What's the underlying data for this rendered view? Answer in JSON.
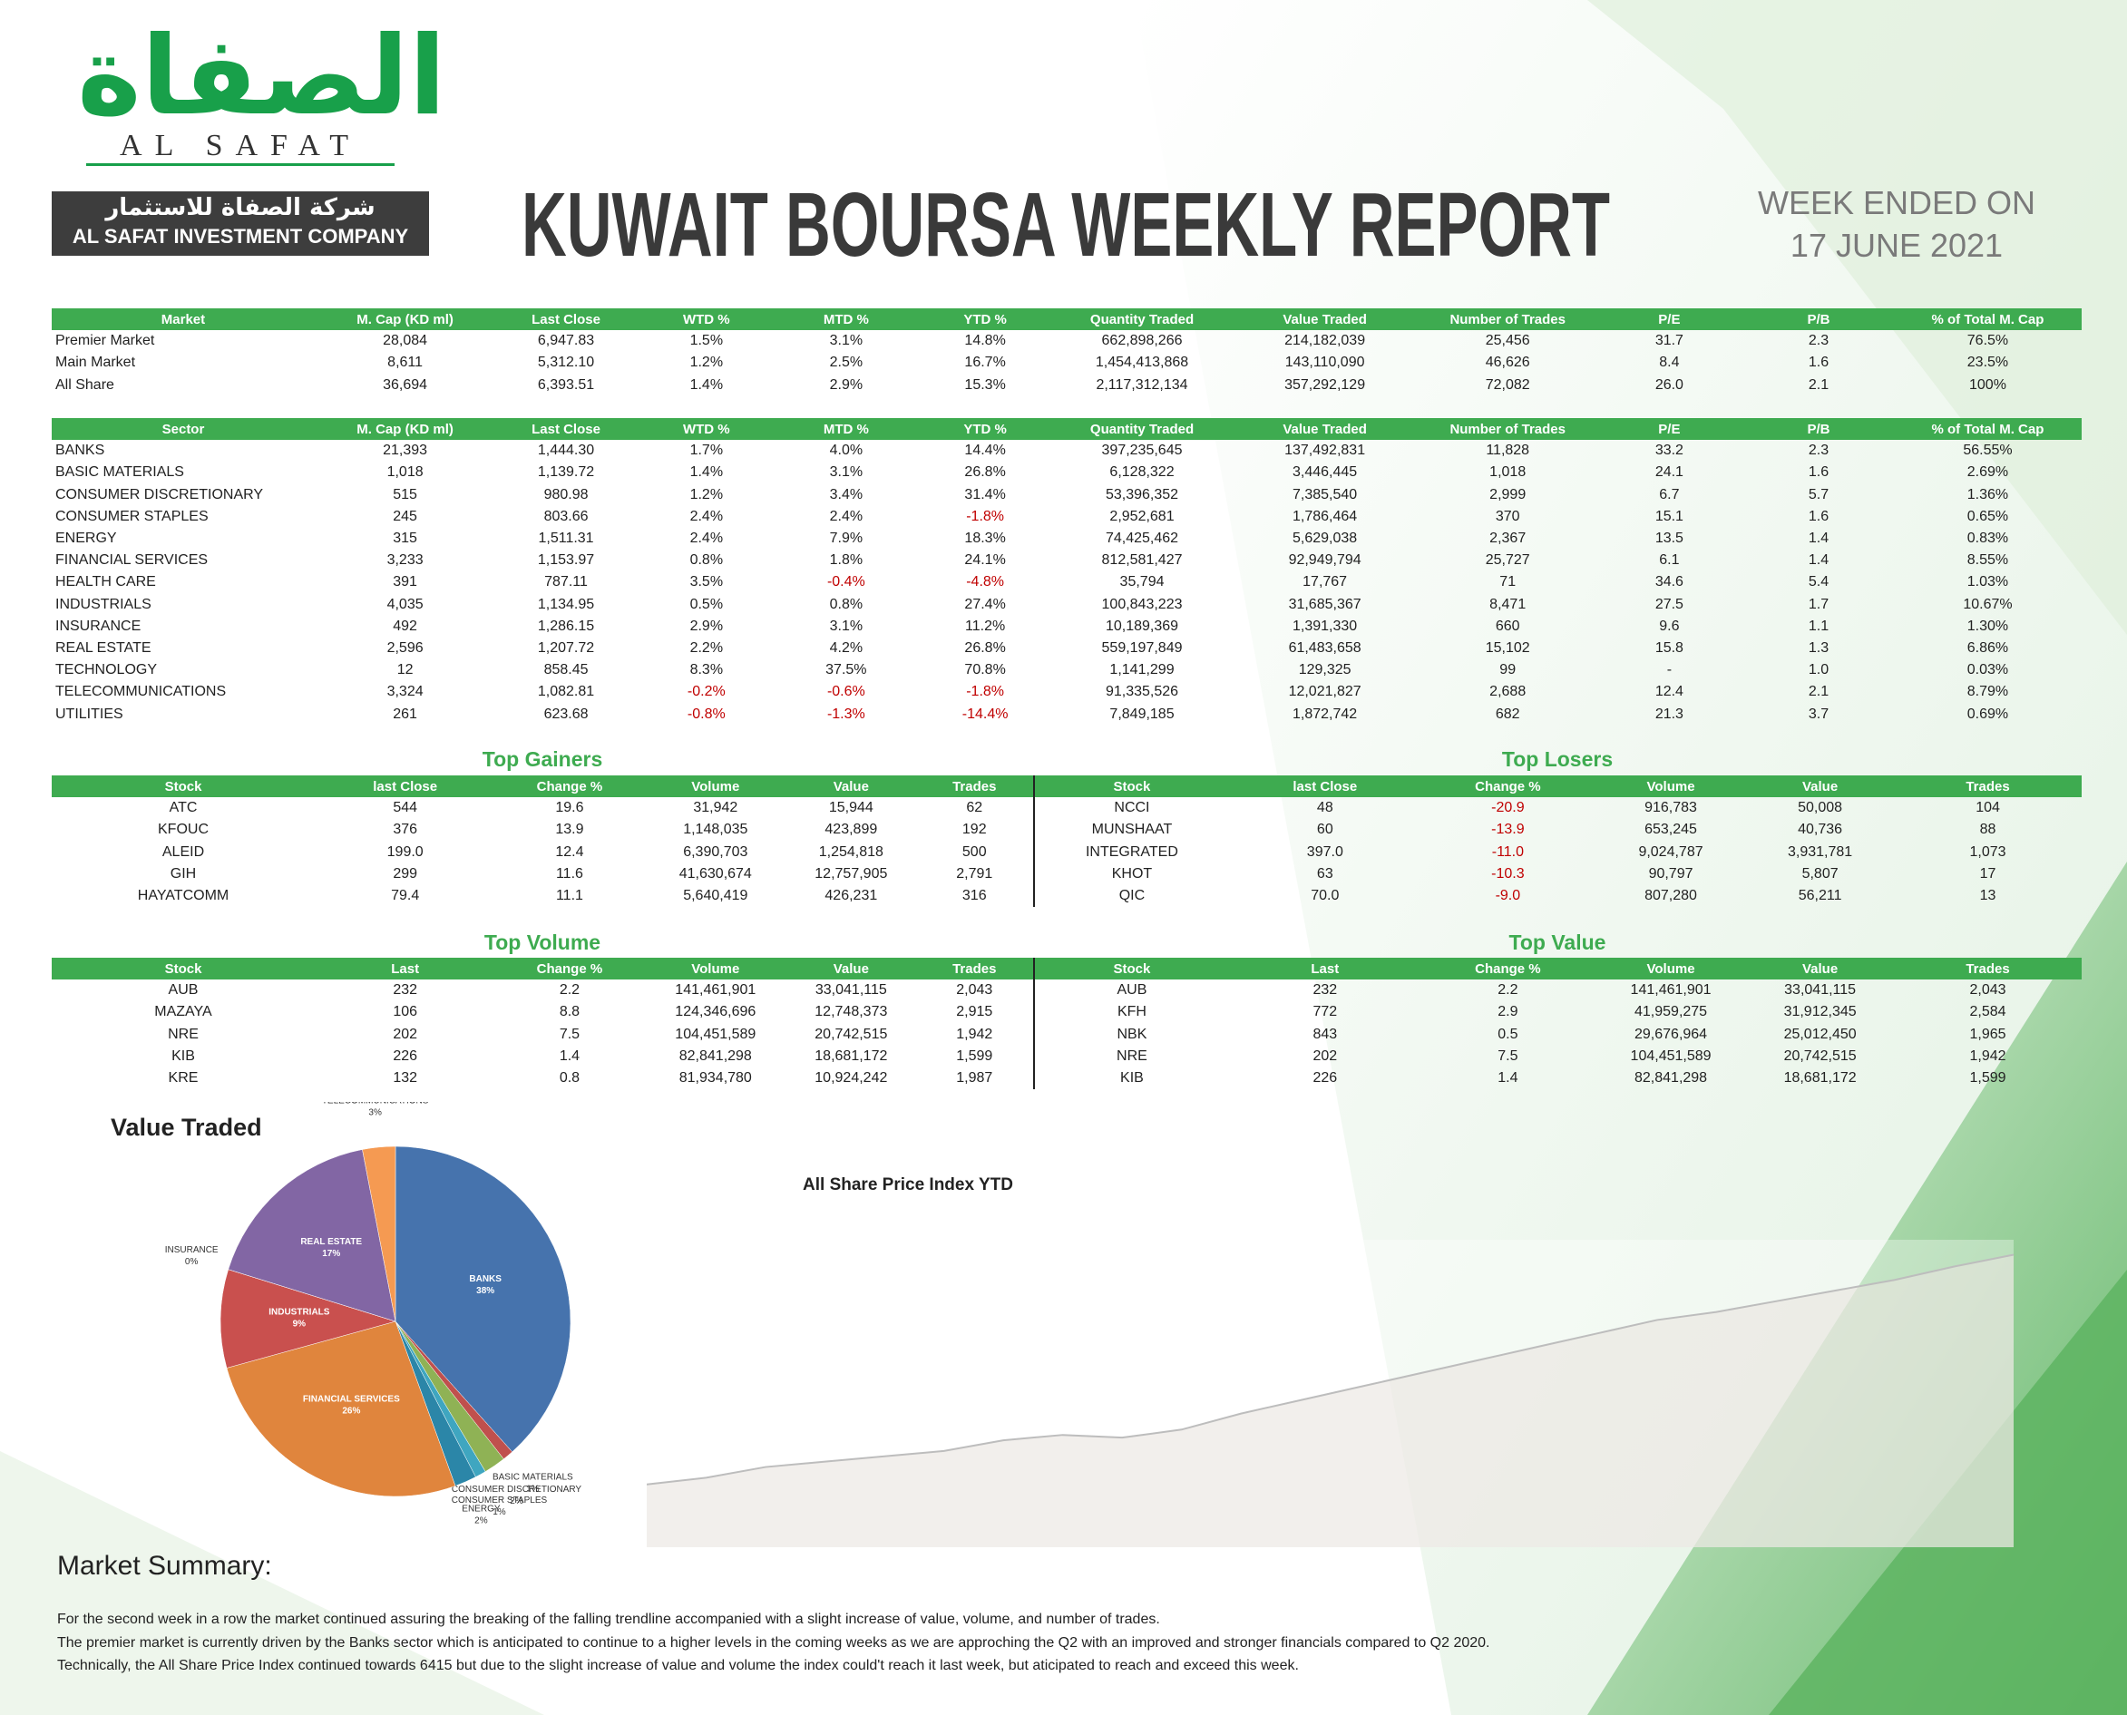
{
  "header": {
    "logo_arabic": "الصفاة",
    "logo_english": "AL SAFAT",
    "company_arabic": "شركة الصفاة للاستثمار",
    "company_english": "AL SAFAT INVESTMENT COMPANY",
    "title": "KUWAIT BOURSA WEEKLY REPORT",
    "week_label": "WEEK ENDED ON",
    "week_date": "17 JUNE 2021"
  },
  "market_table": {
    "columns": [
      "Market",
      "M. Cap (KD ml)",
      "Last Close",
      "WTD %",
      "MTD %",
      "YTD %",
      "Quantity Traded",
      "Value Traded",
      "Number of Trades",
      "P/E",
      "P/B",
      "% of Total M. Cap"
    ],
    "rows": [
      [
        "Premier Market",
        "28,084",
        "6,947.83",
        "1.5%",
        "3.1%",
        "14.8%",
        "662,898,266",
        "214,182,039",
        "25,456",
        "31.7",
        "2.3",
        "76.5%"
      ],
      [
        "Main Market",
        "8,611",
        "5,312.10",
        "1.2%",
        "2.5%",
        "16.7%",
        "1,454,413,868",
        "143,110,090",
        "46,626",
        "8.4",
        "1.6",
        "23.5%"
      ],
      [
        "All Share",
        "36,694",
        "6,393.51",
        "1.4%",
        "2.9%",
        "15.3%",
        "2,117,312,134",
        "357,292,129",
        "72,082",
        "26.0",
        "2.1",
        "100%"
      ]
    ]
  },
  "sector_table": {
    "columns": [
      "Sector",
      "M. Cap (KD ml)",
      "Last Close",
      "WTD %",
      "MTD %",
      "YTD %",
      "Quantity Traded",
      "Value Traded",
      "Number of Trades",
      "P/E",
      "P/B",
      "% of Total M. Cap"
    ],
    "rows": [
      [
        "BANKS",
        "21,393",
        "1,444.30",
        "1.7%",
        "4.0%",
        "14.4%",
        "397,235,645",
        "137,492,831",
        "11,828",
        "33.2",
        "2.3",
        "56.55%"
      ],
      [
        "BASIC MATERIALS",
        "1,018",
        "1,139.72",
        "1.4%",
        "3.1%",
        "26.8%",
        "6,128,322",
        "3,446,445",
        "1,018",
        "24.1",
        "1.6",
        "2.69%"
      ],
      [
        "CONSUMER DISCRETIONARY",
        "515",
        "980.98",
        "1.2%",
        "3.4%",
        "31.4%",
        "53,396,352",
        "7,385,540",
        "2,999",
        "6.7",
        "5.7",
        "1.36%"
      ],
      [
        "CONSUMER STAPLES",
        "245",
        "803.66",
        "2.4%",
        "2.4%",
        "-1.8%",
        "2,952,681",
        "1,786,464",
        "370",
        "15.1",
        "1.6",
        "0.65%"
      ],
      [
        "ENERGY",
        "315",
        "1,511.31",
        "2.4%",
        "7.9%",
        "18.3%",
        "74,425,462",
        "5,629,038",
        "2,367",
        "13.5",
        "1.4",
        "0.83%"
      ],
      [
        "FINANCIAL SERVICES",
        "3,233",
        "1,153.97",
        "0.8%",
        "1.8%",
        "24.1%",
        "812,581,427",
        "92,949,794",
        "25,727",
        "6.1",
        "1.4",
        "8.55%"
      ],
      [
        "HEALTH CARE",
        "391",
        "787.11",
        "3.5%",
        "-0.4%",
        "-4.8%",
        "35,794",
        "17,767",
        "71",
        "34.6",
        "5.4",
        "1.03%"
      ],
      [
        "INDUSTRIALS",
        "4,035",
        "1,134.95",
        "0.5%",
        "0.8%",
        "27.4%",
        "100,843,223",
        "31,685,367",
        "8,471",
        "27.5",
        "1.7",
        "10.67%"
      ],
      [
        "INSURANCE",
        "492",
        "1,286.15",
        "2.9%",
        "3.1%",
        "11.2%",
        "10,189,369",
        "1,391,330",
        "660",
        "9.6",
        "1.1",
        "1.30%"
      ],
      [
        "REAL ESTATE",
        "2,596",
        "1,207.72",
        "2.2%",
        "4.2%",
        "26.8%",
        "559,197,849",
        "61,483,658",
        "15,102",
        "15.8",
        "1.3",
        "6.86%"
      ],
      [
        "TECHNOLOGY",
        "12",
        "858.45",
        "8.3%",
        "37.5%",
        "70.8%",
        "1,141,299",
        "129,325",
        "99",
        "-",
        "1.0",
        "0.03%"
      ],
      [
        "TELECOMMUNICATIONS",
        "3,324",
        "1,082.81",
        "-0.2%",
        "-0.6%",
        "-1.8%",
        "91,335,526",
        "12,021,827",
        "2,688",
        "12.4",
        "2.1",
        "8.79%"
      ],
      [
        "UTILITIES",
        "261",
        "623.68",
        "-0.8%",
        "-1.3%",
        "-14.4%",
        "7,849,185",
        "1,872,742",
        "682",
        "21.3",
        "3.7",
        "0.69%"
      ]
    ]
  },
  "top_gainers": {
    "title": "Top Gainers",
    "columns": [
      "Stock",
      "last Close",
      "Change %",
      "Volume",
      "Value",
      "Trades"
    ],
    "rows": [
      [
        "ATC",
        "544",
        "19.6",
        "31,942",
        "15,944",
        "62"
      ],
      [
        "KFOUC",
        "376",
        "13.9",
        "1,148,035",
        "423,899",
        "192"
      ],
      [
        "ALEID",
        "199.0",
        "12.4",
        "6,390,703",
        "1,254,818",
        "500"
      ],
      [
        "GIH",
        "299",
        "11.6",
        "41,630,674",
        "12,757,905",
        "2,791"
      ],
      [
        "HAYATCOMM",
        "79.4",
        "11.1",
        "5,640,419",
        "426,231",
        "316"
      ]
    ]
  },
  "top_losers": {
    "title": "Top Losers",
    "columns": [
      "Stock",
      "last Close",
      "Change %",
      "Volume",
      "Value",
      "Trades"
    ],
    "rows": [
      [
        "NCCI",
        "48",
        "-20.9",
        "916,783",
        "50,008",
        "104"
      ],
      [
        "MUNSHAAT",
        "60",
        "-13.9",
        "653,245",
        "40,736",
        "88"
      ],
      [
        "INTEGRATED",
        "397.0",
        "-11.0",
        "9,024,787",
        "3,931,781",
        "1,073"
      ],
      [
        "KHOT",
        "63",
        "-10.3",
        "90,797",
        "5,807",
        "17"
      ],
      [
        "QIC",
        "70.0",
        "-9.0",
        "807,280",
        "56,211",
        "13"
      ]
    ]
  },
  "top_volume": {
    "title": "Top Volume",
    "columns": [
      "Stock",
      "Last",
      "Change %",
      "Volume",
      "Value",
      "Trades"
    ],
    "rows": [
      [
        "AUB",
        "232",
        "2.2",
        "141,461,901",
        "33,041,115",
        "2,043"
      ],
      [
        "MAZAYA",
        "106",
        "8.8",
        "124,346,696",
        "12,748,373",
        "2,915"
      ],
      [
        "NRE",
        "202",
        "7.5",
        "104,451,589",
        "20,742,515",
        "1,942"
      ],
      [
        "KIB",
        "226",
        "1.4",
        "82,841,298",
        "18,681,172",
        "1,599"
      ],
      [
        "KRE",
        "132",
        "0.8",
        "81,934,780",
        "10,924,242",
        "1,987"
      ]
    ]
  },
  "top_value": {
    "title": "Top Value",
    "columns": [
      "Stock",
      "Last",
      "Change %",
      "Volume",
      "Value",
      "Trades"
    ],
    "rows": [
      [
        "AUB",
        "232",
        "2.2",
        "141,461,901",
        "33,041,115",
        "2,043"
      ],
      [
        "KFH",
        "772",
        "2.9",
        "41,959,275",
        "31,912,345",
        "2,584"
      ],
      [
        "NBK",
        "843",
        "0.5",
        "29,676,964",
        "25,012,450",
        "1,965"
      ],
      [
        "NRE",
        "202",
        "7.5",
        "104,451,589",
        "20,742,515",
        "1,942"
      ],
      [
        "KIB",
        "226",
        "1.4",
        "82,841,298",
        "18,681,172",
        "1,599"
      ]
    ]
  },
  "value_traded_chart": {
    "type": "pie",
    "title": "Value Traded",
    "categories": [
      "BANKS",
      "BASIC MATERIALS",
      "CONSUMER DISCRETIONARY",
      "CONSUMER STAPLES",
      "ENERGY",
      "FINANCIAL SERVICES",
      "INDUSTRIALS",
      "INSURANCE",
      "REAL ESTATE",
      "TELECOMMUNICATIONS"
    ],
    "values": [
      38,
      1,
      2,
      1,
      2,
      26,
      9,
      0,
      17,
      3
    ],
    "value_labels": [
      "38%",
      "1%",
      "2%",
      "1%",
      "2%",
      "26%",
      "9%",
      "0%",
      "17%",
      "3%"
    ],
    "colors": [
      "#4673ad",
      "#c0504d",
      "#8fb255",
      "#3fa6c0",
      "#2b86a8",
      "#e0853d",
      "#c9504e",
      "#9bbb59",
      "#8266a4",
      "#f59a52"
    ]
  },
  "index_chart": {
    "type": "line",
    "title": "All Share Price Index YTD",
    "values": [
      5535,
      5560,
      5600,
      5620,
      5640,
      5660,
      5700,
      5720,
      5710,
      5740,
      5800,
      5850,
      5900,
      5950,
      6000,
      6050,
      6100,
      6150,
      6180,
      6220,
      6260,
      6300,
      6350,
      6394
    ],
    "ylim": [
      5300,
      6450
    ],
    "color": "#bdbdbd"
  },
  "market_summary": {
    "heading": "Market Summary:",
    "paragraphs": [
      "For the second week in a row the market continued assuring the breaking of the falling trendline accompanied with a slight increase of value, volume, and number of trades.",
      "The premier market is currently driven by the Banks sector which is anticipated to continue to a higher levels in the coming weeks as we are approching the Q2 with an improved and stronger financials compared to Q2 2020.",
      "Technically, the All Share Price Index continued towards 6415 but due to the slight increase of value and volume the index could't reach it last week, but aticipated to reach and exceed this week."
    ]
  }
}
